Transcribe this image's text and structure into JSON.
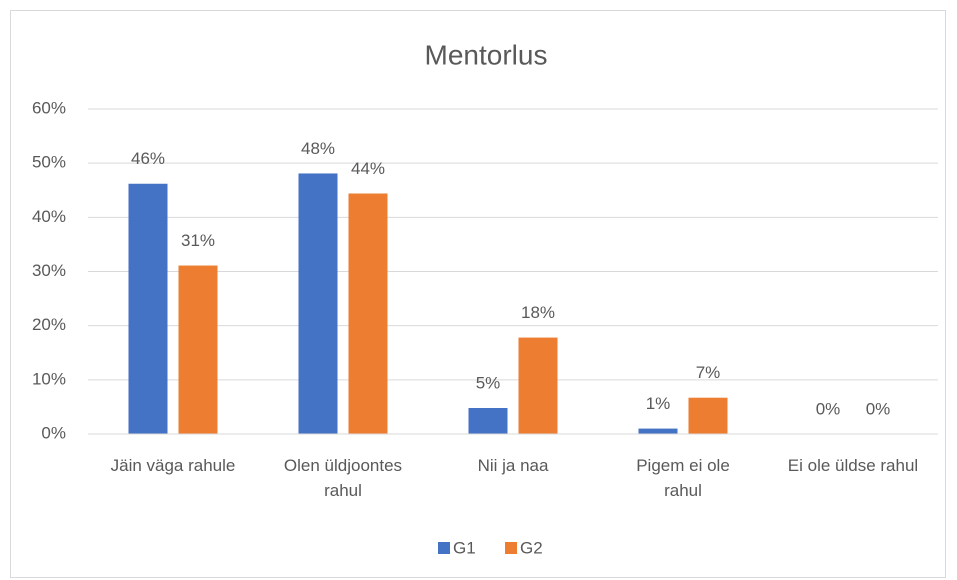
{
  "chart_data": {
    "type": "bar",
    "title": "Mentorlus",
    "categories": [
      "Jäin väga rahule",
      "Olen üldjoontes\nrahul",
      "Nii ja naa",
      "Pigem ei ole\nrahul",
      "Ei ole üldse rahul"
    ],
    "series": [
      {
        "name": "G1",
        "color": "#4472c4",
        "values": [
          46.2,
          48.1,
          4.8,
          1.0,
          0
        ],
        "value_labels": [
          "46%",
          "48%",
          "5%",
          "1%",
          "0%"
        ]
      },
      {
        "name": "G2",
        "color": "#ed7d31",
        "values": [
          31.1,
          44.4,
          17.8,
          6.7,
          0
        ],
        "value_labels": [
          "31%",
          "44%",
          "18%",
          "7%",
          "0%"
        ]
      }
    ],
    "ylim": [
      0,
      60
    ],
    "yticks": [
      {
        "value": 0,
        "label": "0%"
      },
      {
        "value": 10,
        "label": "10%"
      },
      {
        "value": 20,
        "label": "20%"
      },
      {
        "value": 30,
        "label": "30%"
      },
      {
        "value": 40,
        "label": "40%"
      },
      {
        "value": 50,
        "label": "50%"
      },
      {
        "value": 60,
        "label": "60%"
      }
    ],
    "grid": true,
    "legend": "bottom"
  }
}
